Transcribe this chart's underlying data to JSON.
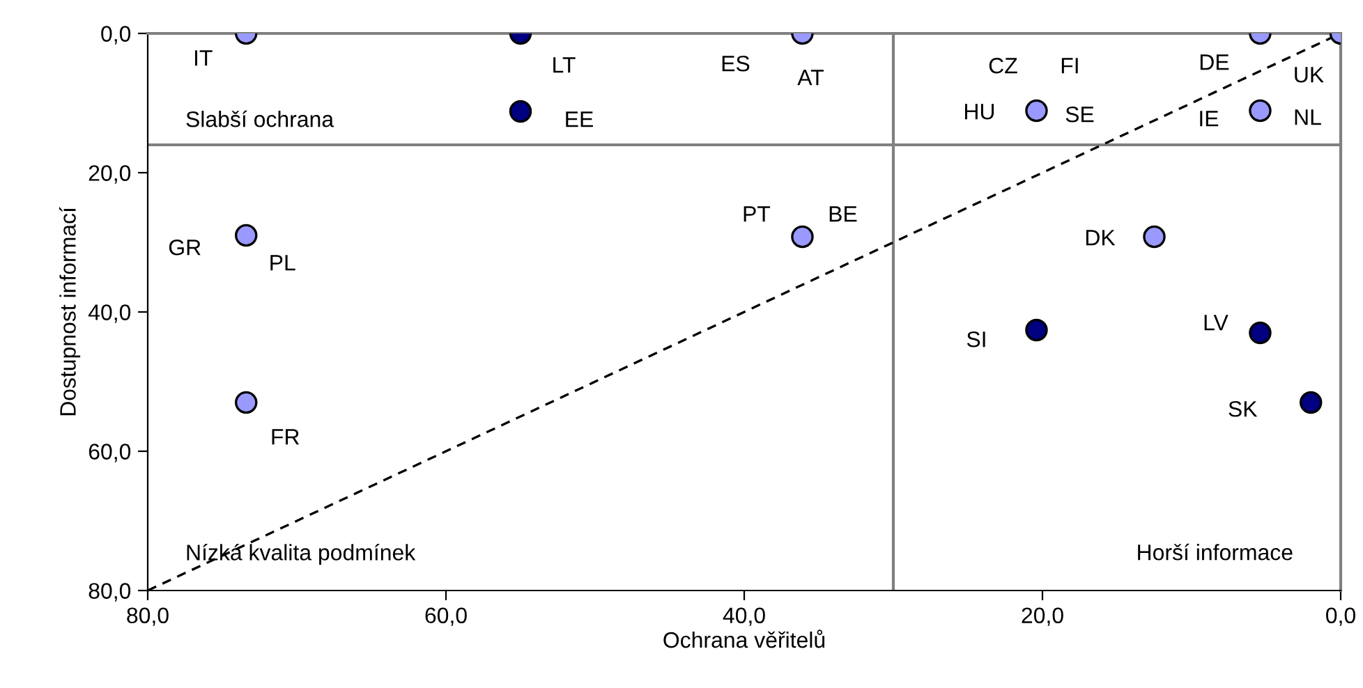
{
  "chart_data": {
    "type": "scatter",
    "xlabel": "Ochrana věřitelů",
    "ylabel": "Dostupnost informací",
    "xlim": [
      80,
      0
    ],
    "ylim": [
      80,
      0
    ],
    "xticks": [
      {
        "value": 80,
        "label": "80,0"
      },
      {
        "value": 60,
        "label": "60,0"
      },
      {
        "value": 40,
        "label": "40,0"
      },
      {
        "value": 20,
        "label": "20,0"
      },
      {
        "value": 0,
        "label": "0,0"
      }
    ],
    "yticks": [
      {
        "value": 80,
        "label": "80,0"
      },
      {
        "value": 60,
        "label": "60,0"
      },
      {
        "value": 40,
        "label": "40,0"
      },
      {
        "value": 20,
        "label": "20,0"
      },
      {
        "value": 0,
        "label": "0,0"
      }
    ],
    "grid": false,
    "legend": false,
    "marker": "circle",
    "series": [
      {
        "color": "#9999ff",
        "x": [
          73.4,
          73.4,
          73.4,
          36.1,
          36.1,
          20.4,
          5.4,
          0,
          5.4,
          12.5
        ],
        "values": [
          0,
          29,
          53,
          0,
          29.2,
          11.1,
          0,
          0,
          11.1,
          29.2
        ]
      },
      {
        "color": "#000080",
        "x": [
          55,
          55,
          20.4,
          5.4,
          2
        ],
        "values": [
          0,
          11.2,
          42.6,
          43,
          53
        ]
      },
      {
        "type": "line",
        "color": "#000000",
        "line_style": "dashed",
        "marker": "none",
        "x": [
          80,
          0
        ],
        "values": [
          80,
          0
        ]
      }
    ],
    "ref_lines": [
      {
        "axis": "x",
        "value": 30,
        "color": "#808080"
      },
      {
        "axis": "y",
        "value": 16,
        "color": "#808080"
      }
    ],
    "annotations": [
      {
        "text": "IT",
        "x": 73.4,
        "y": 0
      },
      {
        "text": "LT",
        "x": 55,
        "y": 0
      },
      {
        "text": "EE",
        "x": 55,
        "y": 11.2
      },
      {
        "text": "GR",
        "x": 73.4,
        "y": 29
      },
      {
        "text": "PL",
        "x": 73.4,
        "y": 29
      },
      {
        "text": "FR",
        "x": 73.4,
        "y": 53
      },
      {
        "text": "ES",
        "x": 36.1,
        "y": 0
      },
      {
        "text": "AT",
        "x": 36.1,
        "y": 0
      },
      {
        "text": "PT",
        "x": 36.1,
        "y": 29.2
      },
      {
        "text": "BE",
        "x": 36.1,
        "y": 29.2
      },
      {
        "text": "CZ",
        "x": 20.4,
        "y": 11.1
      },
      {
        "text": "FI",
        "x": 20.4,
        "y": 11.1
      },
      {
        "text": "HU",
        "x": 20.4,
        "y": 11.1
      },
      {
        "text": "SE",
        "x": 20.4,
        "y": 11.1
      },
      {
        "text": "DE",
        "x": 5.4,
        "y": 0
      },
      {
        "text": "UK",
        "x": 0,
        "y": 0
      },
      {
        "text": "IE",
        "x": 5.4,
        "y": 11.1
      },
      {
        "text": "NL",
        "x": 5.4,
        "y": 11.1
      },
      {
        "text": "DK",
        "x": 12.5,
        "y": 29.2
      },
      {
        "text": "SI",
        "x": 20.4,
        "y": 42.6
      },
      {
        "text": "LV",
        "x": 5.4,
        "y": 43
      },
      {
        "text": "SK",
        "x": 2,
        "y": 53
      },
      "Slabší ochrana",
      "Nízká kvalita podmínek",
      "Horší informace"
    ]
  }
}
